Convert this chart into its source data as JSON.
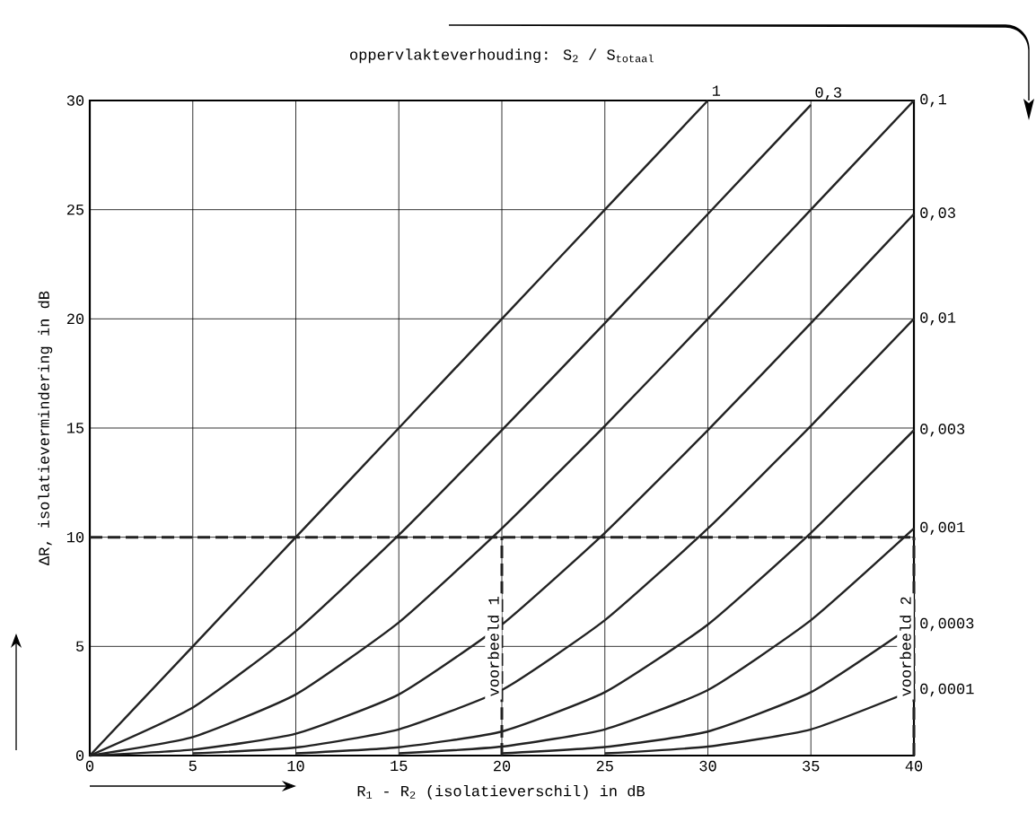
{
  "chart_data": {
    "type": "line",
    "title": "oppervlakteverhouding: S$_{2}$ / S$_{totaal}$",
    "xlabel": "R$_{1}$ - R$_{2}$ (isolatieverschil) in dB",
    "ylabel": "ΔR, isolatievermindering in dB",
    "xlim": [
      0,
      40
    ],
    "ylim": [
      0,
      30
    ],
    "xticks": [
      0,
      5,
      10,
      15,
      20,
      25,
      30,
      35,
      40
    ],
    "yticks": [
      0,
      5,
      10,
      15,
      20,
      25,
      30
    ],
    "grid": true,
    "marker": "none",
    "ref_lines": [
      {
        "axis": "y",
        "value": 10,
        "line_style": "dashed",
        "color": "#222222"
      }
    ],
    "series": [
      {
        "name": "1",
        "color": "#222222",
        "x": [
          0,
          5,
          10,
          15,
          20,
          25,
          30
        ],
        "values": [
          0,
          5,
          10,
          15,
          20,
          25,
          30
        ]
      },
      {
        "name": "0,3",
        "color": "#222222",
        "x": [
          0,
          5,
          10,
          15,
          20,
          25,
          30,
          35
        ],
        "values": [
          0,
          2.2,
          5.7,
          10.1,
          14.9,
          19.8,
          24.8,
          29.8
        ]
      },
      {
        "name": "0,1",
        "color": "#222222",
        "x": [
          0,
          5,
          10,
          15,
          20,
          25,
          30,
          35,
          40
        ],
        "values": [
          0,
          0.85,
          2.8,
          6.1,
          10.4,
          15.1,
          20.0,
          25.0,
          30.0
        ]
      },
      {
        "name": "0,03",
        "color": "#222222",
        "x": [
          0,
          5,
          10,
          15,
          20,
          25,
          30,
          35,
          40
        ],
        "values": [
          0,
          0.27,
          1.0,
          2.8,
          6.0,
          10.2,
          14.9,
          19.8,
          24.8
        ]
      },
      {
        "name": "0,01",
        "color": "#222222",
        "x": [
          5,
          10,
          15,
          20,
          25,
          30,
          35,
          40
        ],
        "values": [
          0.1,
          0.37,
          1.2,
          3.0,
          6.2,
          10.4,
          15.1,
          20.0
        ]
      },
      {
        "name": "0,003",
        "color": "#222222",
        "x": [
          10,
          15,
          20,
          25,
          30,
          35,
          40
        ],
        "values": [
          0.1,
          0.38,
          1.1,
          2.9,
          6.0,
          10.2,
          14.9
        ]
      },
      {
        "name": "0,001",
        "color": "#222222",
        "x": [
          15,
          20,
          25,
          30,
          35,
          40
        ],
        "values": [
          0.1,
          0.41,
          1.2,
          3.0,
          6.2,
          10.4
        ]
      },
      {
        "name": "0,0003",
        "color": "#222222",
        "x": [
          20,
          25,
          30,
          35,
          40
        ],
        "values": [
          0.1,
          0.39,
          1.1,
          2.9,
          6.0
        ]
      },
      {
        "name": "0,0001",
        "color": "#222222",
        "x": [
          25,
          30,
          35,
          40
        ],
        "values": [
          0.1,
          0.41,
          1.2,
          3.0
        ]
      },
      {
        "name": "voorbeeld 1",
        "type": "line",
        "line_style": "dashed",
        "color": "#222222",
        "x": [
          20,
          20
        ],
        "values": [
          0,
          10
        ]
      },
      {
        "name": "voorbeeld 2",
        "type": "line",
        "line_style": "dashed",
        "color": "#222222",
        "x": [
          40,
          40
        ],
        "values": [
          0,
          10
        ]
      }
    ]
  }
}
